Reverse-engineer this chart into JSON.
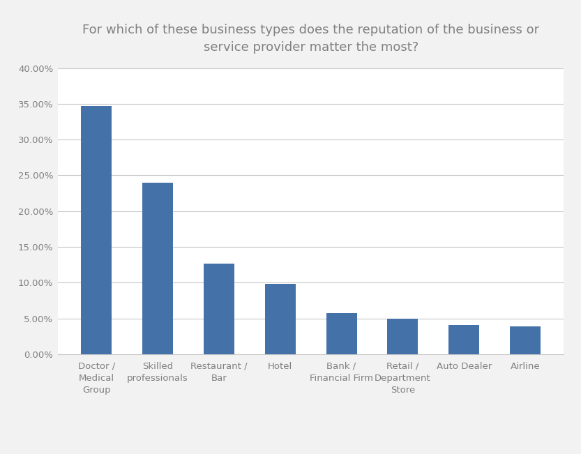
{
  "title": "For which of these business types does the reputation of the business or\nservice provider matter the most?",
  "categories": [
    "Doctor /\nMedical\nGroup",
    "Skilled\nprofessionals",
    "Restaurant /\nBar",
    "Hotel",
    "Bank /\nFinancial Firm",
    "Retail /\nDepartment\nStore",
    "Auto Dealer",
    "Airline"
  ],
  "values": [
    0.347,
    0.24,
    0.127,
    0.098,
    0.057,
    0.05,
    0.041,
    0.039
  ],
  "bar_color": "#4472a8",
  "ylim": [
    0,
    0.4
  ],
  "yticks": [
    0.0,
    0.05,
    0.1,
    0.15,
    0.2,
    0.25,
    0.3,
    0.35,
    0.4
  ],
  "ytick_labels": [
    "0.00%",
    "5.00%",
    "10.00%",
    "15.00%",
    "20.00%",
    "25.00%",
    "30.00%",
    "35.00%",
    "40.00%"
  ],
  "background_color": "#f2f2f2",
  "plot_bg_color": "#ffffff",
  "grid_color": "#c8c8c8",
  "title_fontsize": 13,
  "tick_fontsize": 9.5,
  "bar_width": 0.5,
  "title_color": "#808080",
  "tick_color": "#808080"
}
